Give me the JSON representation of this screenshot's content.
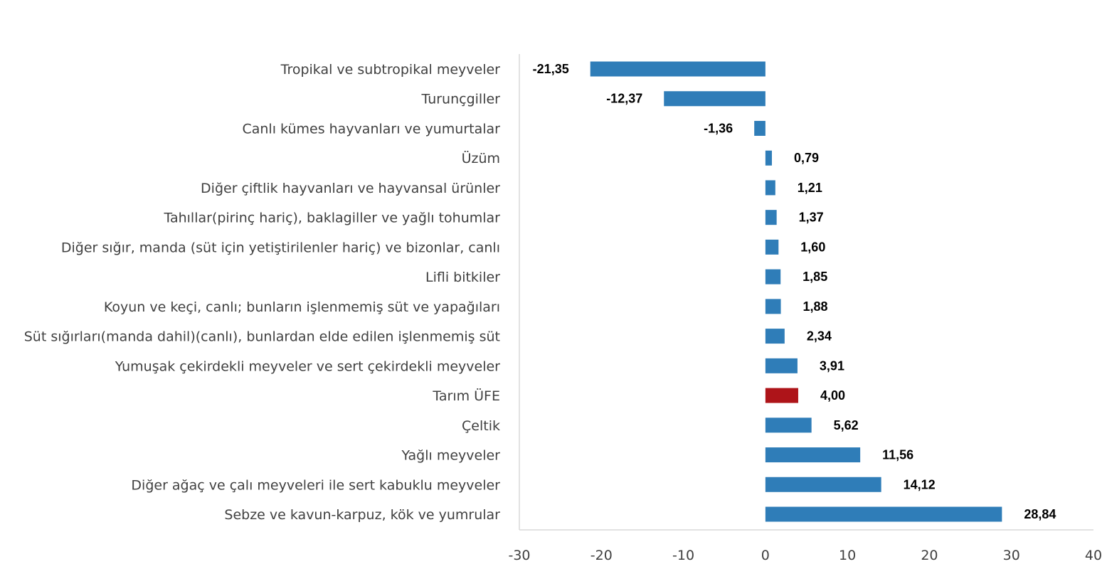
{
  "chart_data": {
    "type": "bar",
    "orientation": "horizontal",
    "title": "",
    "xlabel": "",
    "ylabel": "",
    "xlim": [
      -30,
      40
    ],
    "xticks": [
      -30,
      -20,
      -10,
      0,
      10,
      20,
      30,
      40
    ],
    "grid": false,
    "categories": [
      "Tropikal ve subtropikal meyveler",
      "Turunçgiller",
      "Canlı kümes hayvanları ve yumurtalar",
      "Üzüm",
      "Diğer çiftlik hayvanları ve hayvansal ürünler",
      "Tahıllar(pirinç hariç), baklagiller ve yağlı tohumlar",
      "Diğer sığır, manda (süt için yetiştirilenler hariç) ve bizonlar, canlı",
      "Lifli bitkiler",
      "Koyun ve keçi, canlı; bunların işlenmemiş süt ve yapağıları",
      "Süt sığırları(manda dahil)(canlı), bunlardan elde edilen işlenmemiş süt",
      "Yumuşak çekirdekli meyveler ve sert çekirdekli meyveler",
      "Tarım ÜFE",
      "Çeltik",
      "Yağlı meyveler",
      "Diğer ağaç ve çalı meyveleri ile sert kabuklu meyveler",
      "Sebze ve kavun-karpuz, kök ve yumrular"
    ],
    "values": [
      -21.35,
      -12.37,
      -1.36,
      0.79,
      1.21,
      1.37,
      1.6,
      1.85,
      1.88,
      2.34,
      3.91,
      4.0,
      5.62,
      11.56,
      14.12,
      28.84
    ],
    "value_labels": [
      "-21,35",
      "-12,37",
      "-1,36",
      "0,79",
      "1,21",
      "1,37",
      "1,60",
      "1,85",
      "1,88",
      "2,34",
      "3,91",
      "4,00",
      "5,62",
      "11,56",
      "14,12",
      "28,84"
    ],
    "highlight_category": "Tarım ÜFE",
    "colors": {
      "default": "#2f7db8",
      "highlight": "#ae1419",
      "axis": "#d9d9d9"
    }
  }
}
